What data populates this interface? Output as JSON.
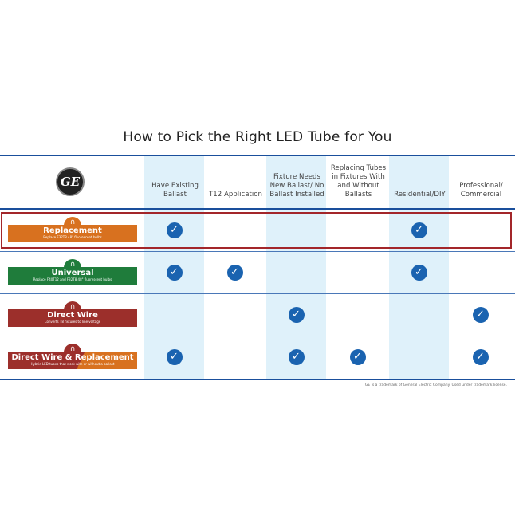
{
  "title": "How to Pick the Right LED Tube for You",
  "logo": "GE",
  "columns": [
    "Have Existing Ballast",
    "T12 Application",
    "Fixture Needs New Ballast/ No Ballast Installed",
    "Replacing Tubes in Fixtures With and Without Ballasts",
    "Residential/DIY",
    "Professional/ Commercial"
  ],
  "rows": [
    {
      "name": "Replacement",
      "sub": "Replace F32T8 48\" fluorescent bulbs",
      "color": "#d8711f",
      "checks": [
        true,
        false,
        false,
        false,
        true,
        false
      ],
      "highlighted": true
    },
    {
      "name": "Universal",
      "sub": "Replace F40T12 and F32T8 48\" fluorescent bulbs",
      "color": "#1f7c3b",
      "checks": [
        true,
        true,
        false,
        false,
        true,
        false
      ]
    },
    {
      "name": "Direct Wire",
      "sub": "Converts T8 fixtures to line voltage",
      "color": "#9c2f2b",
      "checks": [
        false,
        false,
        true,
        false,
        false,
        true
      ]
    },
    {
      "name": "Direct Wire & Replacement",
      "sub": "Hybrid LED tubes that work with or without a ballast",
      "color": "#9c2f2b",
      "color2": "#d8711f",
      "checks": [
        true,
        false,
        true,
        true,
        false,
        true
      ]
    }
  ],
  "footnote": "GE is a trademark of General Electric Company. Used under trademark license.",
  "colors": {
    "rule": "#1a4f9c",
    "check": "#1a63b0",
    "shade": "#dff1fa",
    "highlight": "#a3262a"
  }
}
